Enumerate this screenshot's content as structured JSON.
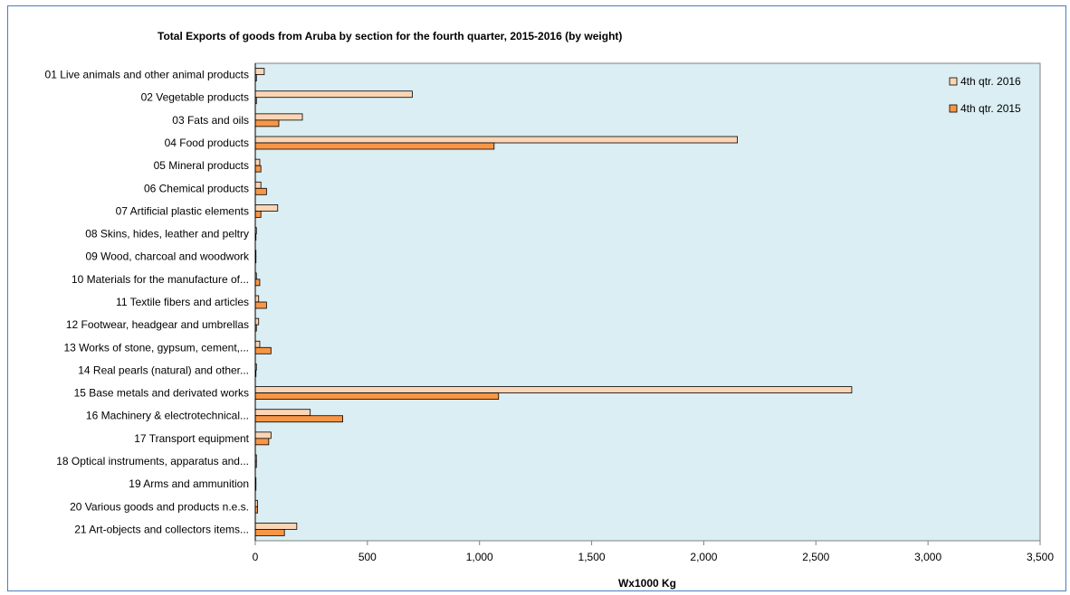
{
  "chart_data": {
    "type": "bar",
    "orientation": "horizontal",
    "title": "Total Exports of goods from Aruba by section for the fourth quarter, 2015-2016 (by weight)",
    "xlabel": "Wx1000 Kg",
    "ylabel": "",
    "xlim": [
      0,
      3500
    ],
    "xticks": [
      0,
      500,
      1000,
      1500,
      2000,
      2500,
      3000,
      3500
    ],
    "xtick_labels": [
      "0",
      "500",
      "1,000",
      "1,500",
      "2,000",
      "2,500",
      "3,000",
      "3,500"
    ],
    "grid": false,
    "legend_position": "top-right",
    "categories": [
      "01 Live animals and other animal products",
      "02 Vegetable products",
      "03 Fats and oils",
      "04 Food products",
      "05 Mineral products",
      "06 Chemical products",
      "07 Artificial plastic elements",
      "08 Skins, hides, leather and peltry",
      "09 Wood, charcoal and woodwork",
      "10 Materials for the manufacture of...",
      "11 Textile fibers and articles",
      "12 Footwear, headgear and umbrellas",
      "13 Works of stone, gypsum, cement,...",
      "14 Real pearls (natural) and other...",
      "15 Base metals and derivated works",
      "16 Machinery & electrotechnical...",
      "17 Transport equipment",
      "18 Optical instruments, apparatus and...",
      "19 Arms and ammunition",
      "20 Various goods and products n.e.s.",
      "21 Art-objects and collectors items..."
    ],
    "series": [
      {
        "name": "4th qtr. 2016",
        "color": "#fcd5b5",
        "values": [
          40,
          700,
          210,
          2150,
          20,
          25,
          100,
          5,
          3,
          5,
          15,
          15,
          20,
          5,
          2660,
          245,
          70,
          5,
          3,
          10,
          185
        ]
      },
      {
        "name": "4th qtr. 2015",
        "color": "#f79646",
        "values": [
          5,
          5,
          105,
          1065,
          25,
          50,
          25,
          3,
          3,
          20,
          50,
          5,
          70,
          3,
          1085,
          390,
          60,
          5,
          3,
          10,
          130
        ]
      }
    ],
    "plot_background": "#daeef3"
  }
}
